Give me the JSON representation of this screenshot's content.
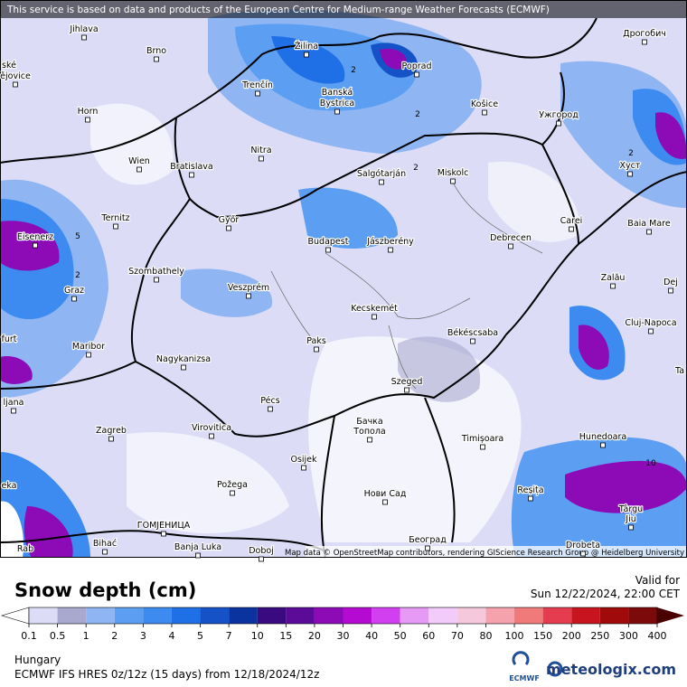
{
  "header": {
    "notice": "This service is based on data and products of the European Centre for Medium-range Weather Forecasts (ECMWF)"
  },
  "map": {
    "attribution": "Map data © OpenStreetMap contributors, rendering GIScience Research Group @ Heidelberg University",
    "cities": [
      "Jihlava",
      "Brno",
      "Žilina",
      "Poprad",
      "Дрогобич",
      "ské",
      "ějovice",
      "Trenčín",
      "Banská",
      "Bystrica",
      "Košice",
      "Ужгород",
      "Horn",
      "Nitra",
      "Хуст",
      "Wien",
      "Bratislava",
      "Salgótarján",
      "Miskolc",
      "Ternitz",
      "Győr",
      "Carei",
      "Baia Mare",
      "Eisenerz",
      "Budapest",
      "Jászberény",
      "Debrecen",
      "Szombathely",
      "Zalău",
      "Graz",
      "Veszprém",
      "Dej",
      "Kecskemét",
      "Cluj-Napoca",
      "furt",
      "Paks",
      "Békéscsaba",
      "Maribor",
      "Nagykanizsa",
      "Ta",
      "ljana",
      "Szeged",
      "Pécs",
      "Бачка",
      "Топола",
      "Zagreb",
      "Virovitica",
      "Timișoara",
      "Hunedoara",
      "Osijek",
      "eka",
      "Požega",
      "Reșița",
      "Нови Сад",
      "Târgu",
      "Jiu",
      "ГОМЈЕНИЦА",
      "Bihać",
      "Banja Luka",
      "Doboj",
      "Београд",
      "Drobeta",
      "Rab"
    ],
    "contour_labels": [
      "2",
      "2",
      "2",
      "2",
      "2",
      "5",
      "10"
    ]
  },
  "legend": {
    "title": "Snow depth (cm)",
    "ticks": [
      0.1,
      0.5,
      1,
      2,
      3,
      4,
      5,
      7,
      10,
      15,
      20,
      30,
      40,
      50,
      60,
      70,
      80,
      100,
      150,
      200,
      250,
      300,
      400
    ],
    "colors": [
      "#ffffff",
      "#dcdcf7",
      "#a9a9cf",
      "#8fb6f2",
      "#5c9ff2",
      "#3d8bf0",
      "#1f6fe6",
      "#1552c8",
      "#0b33a0",
      "#3a0a80",
      "#5c0a98",
      "#8c0bb6",
      "#b40ad2",
      "#d23ff0",
      "#e69af5",
      "#f2cbfa",
      "#f5c8dc",
      "#f5a2ad",
      "#f07a7a",
      "#e63c50",
      "#c8141e",
      "#a00a0a",
      "#7d0a0a",
      "#4a0000"
    ]
  },
  "footer": {
    "valid_label": "Valid for",
    "valid_time": "Sun 12/22/2024, 22:00 CET",
    "region": "Hungary",
    "model": "ECMWF IFS HRES 0z/12z (15 days) from 12/18/2024/12z",
    "ecmwf": "ECMWF",
    "brand": "meteologix.com"
  }
}
